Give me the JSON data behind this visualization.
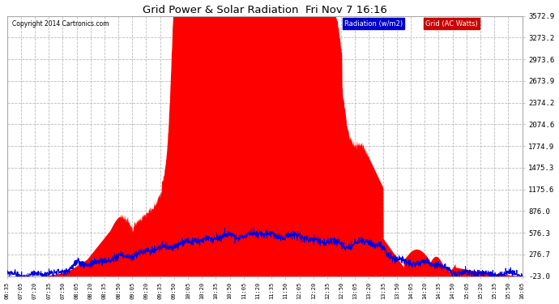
{
  "title": "Grid Power & Solar Radiation  Fri Nov 7 16:16",
  "copyright": "Copyright 2014 Cartronics.com",
  "background_color": "#ffffff",
  "plot_bg_color": "#ffffff",
  "grid_color": "#bbbbbb",
  "yticks": [
    -23.0,
    276.7,
    576.3,
    876.0,
    1175.6,
    1475.3,
    1774.9,
    2074.6,
    2374.2,
    2673.9,
    2973.6,
    3273.2,
    3572.9
  ],
  "xtick_labels": [
    "06:35",
    "07:05",
    "07:20",
    "07:35",
    "07:50",
    "08:05",
    "08:20",
    "08:35",
    "08:50",
    "09:05",
    "09:20",
    "09:35",
    "09:50",
    "10:05",
    "10:20",
    "10:35",
    "10:50",
    "11:05",
    "11:20",
    "11:35",
    "11:50",
    "12:05",
    "12:20",
    "12:35",
    "12:50",
    "13:05",
    "13:20",
    "13:35",
    "13:50",
    "14:05",
    "14:20",
    "14:35",
    "14:50",
    "15:05",
    "15:20",
    "15:35",
    "15:50",
    "16:05"
  ],
  "legend_labels": [
    "Radiation (w/m2)",
    "Grid (AC Watts)"
  ],
  "fill_color": "#ff0000",
  "line_color": "#0000dd",
  "ylim": [
    -23.0,
    3572.9
  ]
}
